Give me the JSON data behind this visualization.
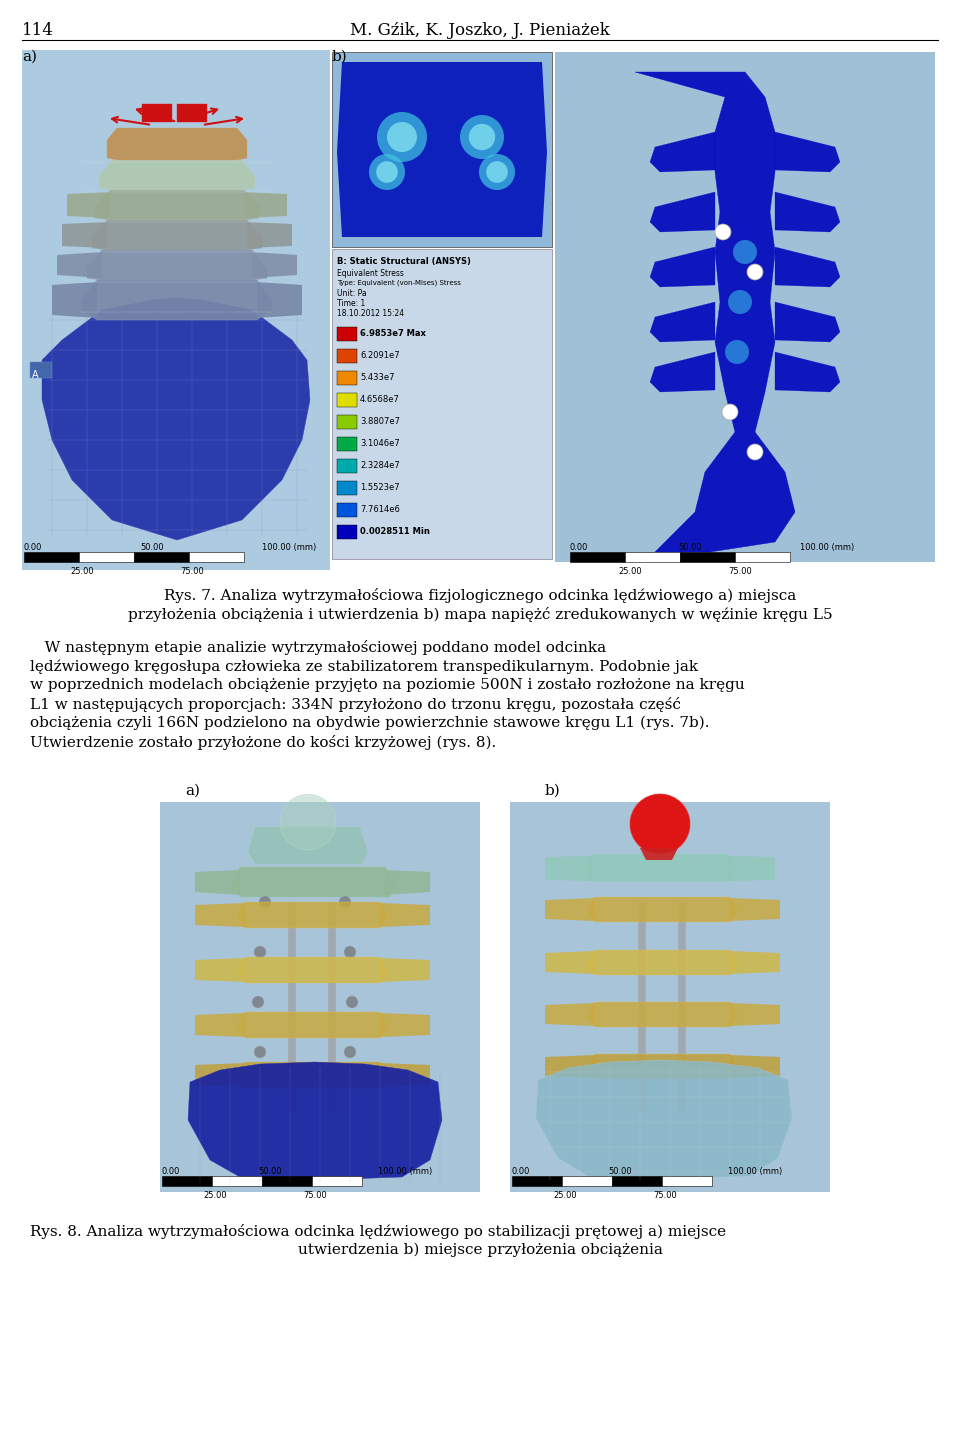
{
  "page_number": "114",
  "header_text": "M. Gźik, K. Joszko, J. Pieniażek",
  "fig7_label_a": "a)",
  "fig7_label_b": "b)",
  "fig8_label_a": "a)",
  "fig8_label_b": "b)",
  "caption7_line1": "Rys. 7. Analiza wytrzymałościowa fizjologicznego odcinka lędźwiowego a) miejsca",
  "caption7_line2": "przyłożenia obciążenia i utwierdzenia b) mapa napiężć zredukowanych w węźinie kręgu L5",
  "para_indent": "   W następnym etapie analizie wytrzymałościowej poddano model odcinka",
  "para_line2": "lędźwiowego kręgosłupa człowieka ze stabilizatorem transpedikularnym. Podobnie jak",
  "para_line3": "w poprzednich modelach obciążenie przyjęto na poziomie 500N i zostało rozłożone na kręgu",
  "para_line4": "L1 w następujących proporcjach: 334N przyłożono do trzonu kręgu, pozostała część",
  "para_line5": "obciążenia czyli 166N podzielono na obydwie powierzchnie stawowe kręgu L1 (rys. 7b).",
  "para_line6": "Utwierdzenie zostało przyłożone do kości krzyżowej (rys. 8).",
  "caption8_line1": "Rys. 8. Analiza wytrzymałościowa odcinka lędźwiowego po stabilizacji prętowej a) miejsce",
  "caption8_line2": "utwierdzenia b) miejsce przyłożenia obciążenia",
  "legend_title": "B: Static Structural (ANSYS)",
  "legend_l1": "Equivalent Stress",
  "legend_l2": "Type: Equivalent (von-Mises) Stress",
  "legend_l3": "Unit: Pa",
  "legend_l4": "Time: 1",
  "legend_l5": "18.10.2012 15:24",
  "legend_colors": [
    "#cc0000",
    "#dd4400",
    "#ee8800",
    "#dddd00",
    "#88cc00",
    "#00aa44",
    "#00aaaa",
    "#0088cc",
    "#0055dd",
    "#0000bb"
  ],
  "legend_labels": [
    "6.9853e7 Max",
    "6.2091e7",
    "5.433e7",
    "4.6568e7",
    "3.8807e7",
    "3.1046e7",
    "2.3284e7",
    "1.5523e7",
    "7.7614e6",
    "0.0028511 Min"
  ]
}
